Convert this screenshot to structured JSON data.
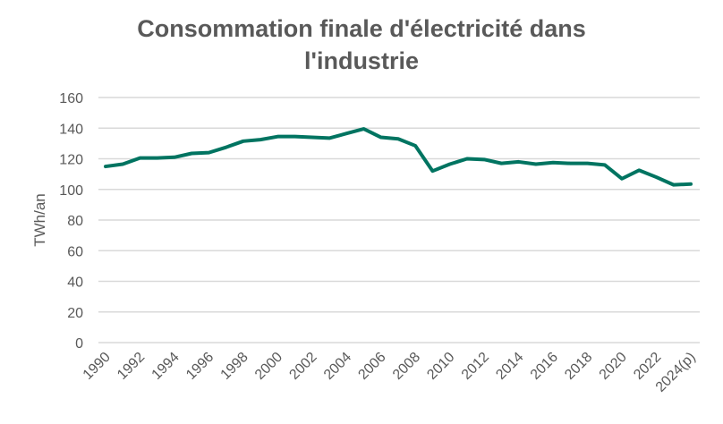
{
  "chart_data": {
    "type": "line",
    "title_line1": "Consommation finale d'électricité dans",
    "title_line2": "l'industrie",
    "xlabel": "",
    "ylabel": "TWh/an",
    "ylim": [
      0,
      160
    ],
    "yticks": [
      0,
      20,
      40,
      60,
      80,
      100,
      120,
      140,
      160
    ],
    "xtick_labels": [
      "1990",
      "1992",
      "1994",
      "1996",
      "1998",
      "2000",
      "2002",
      "2004",
      "2006",
      "2008",
      "2010",
      "2012",
      "2014",
      "2016",
      "2018",
      "2020",
      "2022",
      "2024(p)"
    ],
    "grid": true,
    "legend": "none",
    "color": "#007461",
    "x": [
      1990,
      1991,
      1992,
      1993,
      1994,
      1995,
      1996,
      1997,
      1998,
      1999,
      2000,
      2001,
      2002,
      2003,
      2004,
      2005,
      2006,
      2007,
      2008,
      2009,
      2010,
      2011,
      2012,
      2013,
      2014,
      2015,
      2016,
      2017,
      2018,
      2019,
      2020,
      2021,
      2022,
      2023,
      2024
    ],
    "values": [
      115,
      116.5,
      120.5,
      120.5,
      121,
      123.5,
      124,
      127.5,
      131.5,
      132.5,
      134.5,
      134.5,
      134,
      133.5,
      136.5,
      139.5,
      134,
      133,
      128.5,
      112,
      116.5,
      120,
      119.5,
      117,
      118,
      116.5,
      117.5,
      117,
      117,
      116,
      107,
      112.5,
      108,
      103,
      103.5
    ]
  }
}
